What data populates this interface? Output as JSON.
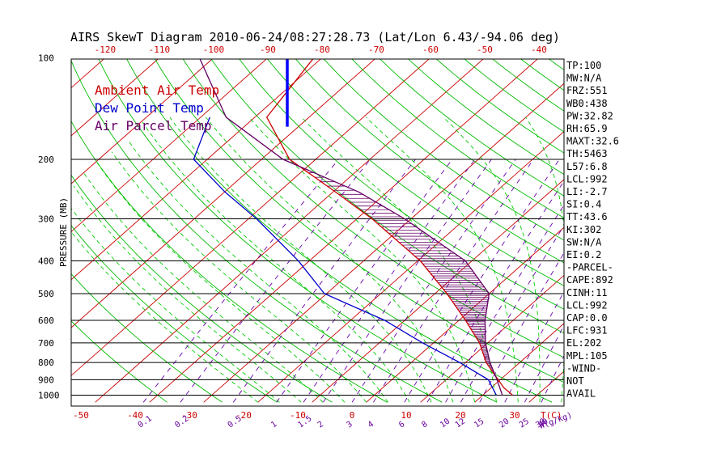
{
  "title": "AIRS SkewT Diagram 2010-06-24/08:27:28.73 (Lat/Lon 6.43/-94.06 deg)",
  "colors": {
    "ambient": "#cc0000",
    "dewpoint": "#0000cc",
    "parcel": "#660066",
    "isotherm": "#cc0000",
    "dry_adiabat": "#00bb00",
    "moist_adiabat": "#00cc00",
    "mixing_ratio": "#6600aa",
    "isobar": "#000000",
    "wind_barb": "#0000ff"
  },
  "chart_data": {
    "type": "line",
    "title": "AIRS SkewT Diagram 2010-06-24/08:27:28.73 (Lat/Lon 6.43/-94.06 deg)",
    "ylabel": "PRESSURE (MB)",
    "xlabel_bottom": "T(C)",
    "xlabel_mixing": "W(g/kg)",
    "y_scale": "log",
    "ylim_mb": [
      1050,
      100
    ],
    "pressure_ticks": [
      "100",
      "200",
      "300",
      "400",
      "500",
      "600",
      "700",
      "800",
      "900",
      "1000"
    ],
    "top_temp_ticks": [
      "-120",
      "-110",
      "-100",
      "-90",
      "-80",
      "-70",
      "-60",
      "-50",
      "-40"
    ],
    "bottom_temp_ticks": [
      "-50",
      "-40",
      "-30",
      "-20",
      "-10",
      "0",
      "10",
      "20",
      "30"
    ],
    "mixing_ratio_ticks": [
      "0.1",
      "0.2",
      "0.5",
      "1",
      "1.5",
      "2",
      "3",
      "4",
      "6",
      "8",
      "10",
      "12",
      "15",
      "20",
      "25",
      "30",
      "40"
    ],
    "legend": [
      {
        "label": "Ambient Air Temp",
        "color": "#cc0000"
      },
      {
        "label": "Dew Point Temp",
        "color": "#0000cc"
      },
      {
        "label": "Air Parcel Temp",
        "color": "#660066"
      }
    ],
    "series": [
      {
        "name": "Ambient Air Temp",
        "points": [
          {
            "p": 100,
            "t": -81.5
          },
          {
            "p": 150,
            "t": -77.8
          },
          {
            "p": 200,
            "t": -64.8
          },
          {
            "p": 250,
            "t": -49.5
          },
          {
            "p": 300,
            "t": -37.2
          },
          {
            "p": 400,
            "t": -19.5
          },
          {
            "p": 500,
            "t": -7.8
          },
          {
            "p": 600,
            "t": 1.2
          },
          {
            "p": 700,
            "t": 8.5
          },
          {
            "p": 800,
            "t": 13.8
          },
          {
            "p": 900,
            "t": 19.6
          },
          {
            "p": 950,
            "t": 22.3
          },
          {
            "p": 1000,
            "t": 25.5
          }
        ]
      },
      {
        "name": "Dew Point Temp",
        "points": [
          {
            "p": 150,
            "t": -88.3
          },
          {
            "p": 200,
            "t": -82.5
          },
          {
            "p": 250,
            "t": -69.9
          },
          {
            "p": 300,
            "t": -58.5
          },
          {
            "p": 400,
            "t": -42.0
          },
          {
            "p": 500,
            "t": -30.4
          },
          {
            "p": 600,
            "t": -13.7
          },
          {
            "p": 700,
            "t": -2.0
          },
          {
            "p": 800,
            "t": 8.9
          },
          {
            "p": 900,
            "t": 17.8
          },
          {
            "p": 1000,
            "t": 22.5
          }
        ]
      },
      {
        "name": "Air Parcel Temp",
        "points": [
          {
            "p": 100,
            "t": -102.6
          },
          {
            "p": 150,
            "t": -85.3
          },
          {
            "p": 200,
            "t": -66.0
          },
          {
            "p": 250,
            "t": -45.2
          },
          {
            "p": 300,
            "t": -31.2
          },
          {
            "p": 400,
            "t": -11.2
          },
          {
            "p": 500,
            "t": 0.0
          },
          {
            "p": 600,
            "t": 4.8
          },
          {
            "p": 700,
            "t": 9.6
          },
          {
            "p": 800,
            "t": 14.5
          },
          {
            "p": 900,
            "t": 19.4
          },
          {
            "p": 1000,
            "t": 23.6
          }
        ]
      }
    ],
    "wind_barb": {
      "p_top": 100,
      "p_bottom": 160,
      "color": "#0000ff"
    }
  },
  "indices": [
    "TP:100",
    "MW:N/A",
    "FRZ:551",
    "WB0:438",
    "PW:32.82",
    "RH:65.9",
    "MAXT:32.6",
    "TH:5463",
    "L57:6.8",
    "LCL:992",
    "LI:-2.7",
    "SI:0.4",
    "TT:43.6",
    "KI:302",
    "SW:N/A",
    "EI:0.2",
    "-PARCEL-",
    "CAPE:892",
    "CINH:11",
    "LCL:992",
    "CAP:0.0",
    "LFC:931",
    "EL:202",
    "MPL:105",
    "-WIND-",
    "NOT",
    "AVAIL"
  ]
}
